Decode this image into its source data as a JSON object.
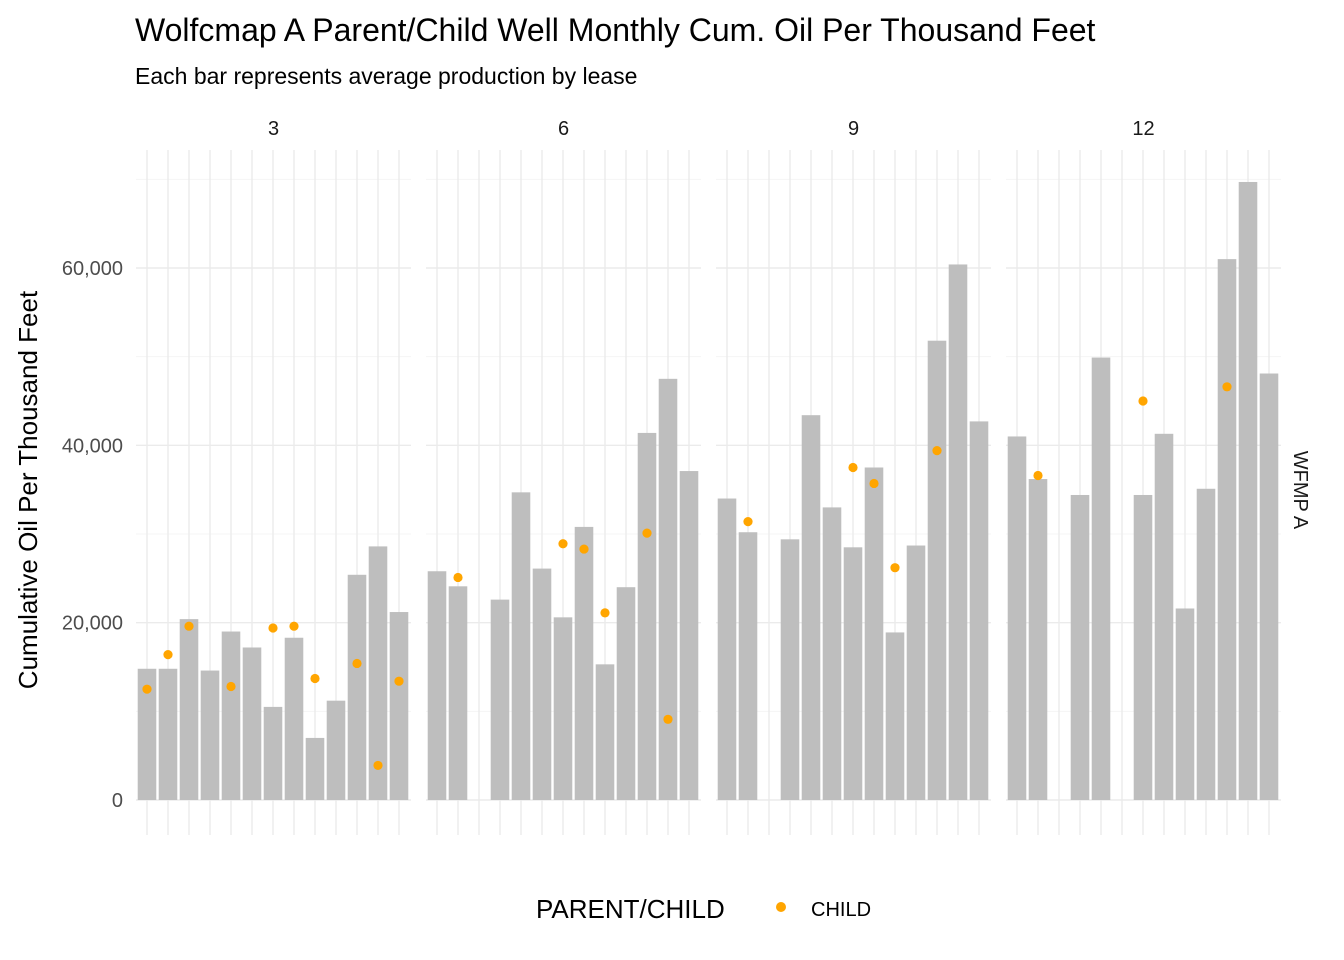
{
  "chart_data": {
    "type": "bar",
    "title": "Wolfcmap A Parent/Child Well Monthly Cum. Oil Per Thousand Feet",
    "subtitle": "Each bar represents average production by lease",
    "ylabel": "Cumulative Oil Per Thousand Feet",
    "xlabel": "",
    "ylim": [
      0,
      73000
    ],
    "y_ticks": [
      0,
      20000,
      40000,
      60000
    ],
    "y_tick_labels": [
      "0",
      "20,000",
      "40,000",
      "60,000"
    ],
    "grid": true,
    "facet_row_label": "WFMP A",
    "bar_color": "#bebebe",
    "point_color": "#ffa500",
    "legend": {
      "title": "PARENT/CHILD",
      "position": "bottom",
      "entries": [
        {
          "label": "CHILD",
          "color": "#ffa500"
        }
      ]
    },
    "slot_count": 13,
    "panels": [
      {
        "label": "3",
        "bars": [
          14800,
          14800,
          20400,
          14600,
          19000,
          17200,
          10500,
          18300,
          7000,
          11200,
          25400,
          28600,
          21200
        ],
        "points": [
          12500,
          16400,
          19600,
          null,
          12800,
          null,
          19400,
          19600,
          13700,
          null,
          15400,
          3900,
          13400
        ]
      },
      {
        "label": "6",
        "bars": [
          25800,
          24100,
          null,
          22600,
          34700,
          26100,
          20600,
          30800,
          15300,
          24000,
          41400,
          47500,
          37100
        ],
        "points": [
          null,
          25100,
          null,
          null,
          null,
          null,
          28900,
          28300,
          21100,
          null,
          30100,
          9100,
          null
        ]
      },
      {
        "label": "9",
        "bars": [
          34000,
          30200,
          null,
          29400,
          43400,
          33000,
          28500,
          37500,
          18900,
          28700,
          51800,
          60400,
          42700
        ],
        "points": [
          null,
          31400,
          null,
          null,
          null,
          null,
          37500,
          35700,
          26200,
          null,
          39400,
          null,
          null
        ]
      },
      {
        "label": "12",
        "bars": [
          41000,
          36200,
          null,
          34400,
          49900,
          null,
          34400,
          41300,
          21600,
          35100,
          61000,
          69700,
          48100
        ],
        "points": [
          null,
          36600,
          null,
          null,
          null,
          null,
          45000,
          null,
          null,
          null,
          46600,
          null,
          null
        ]
      }
    ]
  }
}
